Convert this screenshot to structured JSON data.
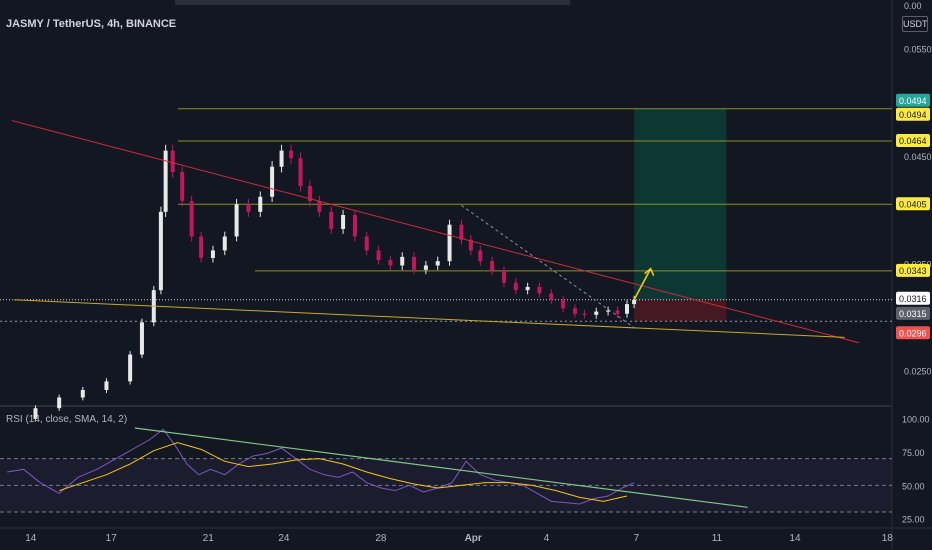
{
  "header": {
    "title": "JASMY / TetherUS, 4h, BINANCE",
    "currency_unit": "USDT"
  },
  "chart_data": [
    {
      "type": "line",
      "subtype": "candlestick",
      "title": "JASMY / TetherUS, 4h, BINANCE",
      "y_unit": "USDT",
      "yticks": [
        "0.0550",
        "0.0450",
        "0.0350",
        "0.0250"
      ],
      "top_tick": "0.00",
      "ylim": [
        0.0218,
        0.0586
      ],
      "xticks": [
        "14",
        "17",
        "21",
        "24",
        "28",
        "Apr",
        "4",
        "7",
        "11",
        "14",
        "18"
      ],
      "xlim_days": [
        11.5,
        49.2
      ],
      "colors": {
        "up": "#26a69a",
        "down": "#ef5350",
        "trend_red": "#d22b3c",
        "trend_gold": "#c8a82b",
        "level": "#8a8f2a",
        "target_zone": "#0c3b34",
        "stop_zone": "#4d1a22"
      },
      "series": [
        {
          "name": "close",
          "x_days": [
            12.0,
            13.0,
            14.0,
            15.0,
            16.0,
            17.0,
            17.5,
            18.0,
            18.3,
            18.5,
            18.8,
            19.2,
            19.6,
            20.0,
            20.5,
            21.0,
            21.5,
            22.0,
            22.5,
            23.0,
            23.4,
            23.8,
            24.2,
            24.6,
            25.0,
            25.5,
            26.0,
            26.5,
            27.0,
            27.5,
            28.0,
            28.5,
            29.0,
            29.5,
            30.0,
            30.5,
            31.0,
            31.4,
            31.8,
            32.3,
            32.8,
            33.3,
            33.8,
            34.3,
            34.8,
            35.3,
            35.8,
            36.2,
            36.7,
            37.2,
            37.6,
            38.0,
            38.3
          ],
          "values": [
            0.0205,
            0.0215,
            0.0225,
            0.0232,
            0.024,
            0.0265,
            0.0295,
            0.0325,
            0.0398,
            0.0455,
            0.0435,
            0.0408,
            0.0375,
            0.0355,
            0.0362,
            0.0375,
            0.0405,
            0.0398,
            0.0412,
            0.044,
            0.0455,
            0.0448,
            0.0422,
            0.0408,
            0.0398,
            0.0382,
            0.0395,
            0.0375,
            0.0362,
            0.0353,
            0.0348,
            0.0356,
            0.0344,
            0.0348,
            0.0352,
            0.0386,
            0.0372,
            0.0362,
            0.0352,
            0.0343,
            0.0332,
            0.0325,
            0.0328,
            0.0322,
            0.0316,
            0.0308,
            0.0303,
            0.0302,
            0.0305,
            0.0306,
            0.0303,
            0.0312,
            0.0316
          ]
        },
        {
          "name": "red descending trendline",
          "x_days": [
            12.0,
            47.8
          ],
          "values": [
            0.0483,
            0.0276
          ]
        },
        {
          "name": "gold lower trendline",
          "x_days": [
            12.1,
            47.2
          ],
          "values": [
            0.0316,
            0.0281
          ]
        },
        {
          "name": "dotted projection",
          "x_days": [
            31.0,
            38.3
          ],
          "values": [
            0.0404,
            0.029
          ]
        },
        {
          "name": "projected move",
          "x_days": [
            38.3,
            39.0
          ],
          "values": [
            0.0316,
            0.0345
          ]
        }
      ],
      "horizontal_levels": [
        {
          "label": "0.0494",
          "value": 0.0494
        },
        {
          "label": "0.0464",
          "value": 0.0464
        },
        {
          "label": "0.0405",
          "value": 0.0405
        },
        {
          "label": "0.0343",
          "value": 0.0343
        },
        {
          "label": "0.0296",
          "value": 0.0296
        }
      ],
      "price_labels": [
        {
          "label": "0.0494",
          "value": 0.0494,
          "color": "#26a69a"
        },
        {
          "label": "0.0494",
          "value": 0.0494,
          "color": "#ffeb3b"
        },
        {
          "label": "0.0464",
          "value": 0.0464,
          "color": "#ffeb3b"
        },
        {
          "label": "0.0405",
          "value": 0.0405,
          "color": "#ffeb3b"
        },
        {
          "label": "0.0343",
          "value": 0.0343,
          "color": "#ffeb3b"
        },
        {
          "label": "0.0316",
          "value": 0.0316,
          "color": "#ffffff"
        },
        {
          "label": "0.0315",
          "value": 0.0315,
          "color": "#5d606b"
        },
        {
          "label": "0.0296",
          "value": 0.0296,
          "color": "#ef5350"
        }
      ],
      "position_zones": [
        {
          "name": "target",
          "x_days": [
            38.3,
            42.2
          ],
          "values": [
            0.0316,
            0.0494
          ]
        },
        {
          "name": "stop",
          "x_days": [
            38.3,
            42.2
          ],
          "values": [
            0.0296,
            0.0316
          ]
        }
      ],
      "current_price": 0.0316
    },
    {
      "type": "line",
      "title": "RSI (14, close, SMA, 14, 2)",
      "yticks": [
        "100.00",
        "75.00",
        "50.00",
        "25.00"
      ],
      "ylim": [
        18,
        108
      ],
      "bands": [
        30,
        70
      ],
      "series": [
        {
          "name": "RSI",
          "x_days": [
            11.8,
            12.5,
            13.2,
            14.0,
            14.8,
            15.6,
            16.4,
            17.2,
            17.8,
            18.4,
            18.9,
            19.4,
            19.9,
            20.4,
            21.0,
            21.6,
            22.2,
            22.8,
            23.4,
            24.0,
            24.6,
            25.2,
            25.8,
            26.4,
            27.0,
            27.6,
            28.2,
            28.8,
            29.4,
            30.0,
            30.6,
            31.2,
            31.8,
            32.4,
            33.0,
            33.6,
            34.2,
            34.8,
            35.4,
            36.0,
            36.6,
            37.2,
            37.8,
            38.3
          ],
          "values": [
            60,
            62,
            52,
            44,
            56,
            62,
            70,
            78,
            84,
            92,
            80,
            66,
            58,
            62,
            58,
            66,
            72,
            74,
            78,
            70,
            62,
            58,
            56,
            60,
            52,
            48,
            46,
            50,
            45,
            48,
            52,
            68,
            58,
            54,
            52,
            50,
            44,
            38,
            37,
            36,
            40,
            42,
            48,
            52
          ]
        },
        {
          "name": "RSI-based MA",
          "x_days": [
            14.0,
            15.0,
            16.0,
            17.0,
            18.0,
            19.0,
            20.0,
            21.0,
            22.0,
            23.0,
            24.0,
            25.0,
            26.0,
            27.0,
            28.0,
            29.0,
            30.0,
            31.0,
            32.0,
            33.0,
            34.0,
            35.0,
            36.0,
            37.0,
            38.0
          ],
          "values": [
            46,
            52,
            58,
            66,
            76,
            82,
            77,
            68,
            64,
            66,
            69,
            70,
            66,
            60,
            55,
            51,
            48,
            50,
            52,
            52,
            50,
            46,
            41,
            38,
            42
          ]
        },
        {
          "name": "green RSI trendline",
          "x_days": [
            17.2,
            43.1
          ],
          "values": [
            93.0,
            33.5
          ]
        }
      ]
    }
  ]
}
